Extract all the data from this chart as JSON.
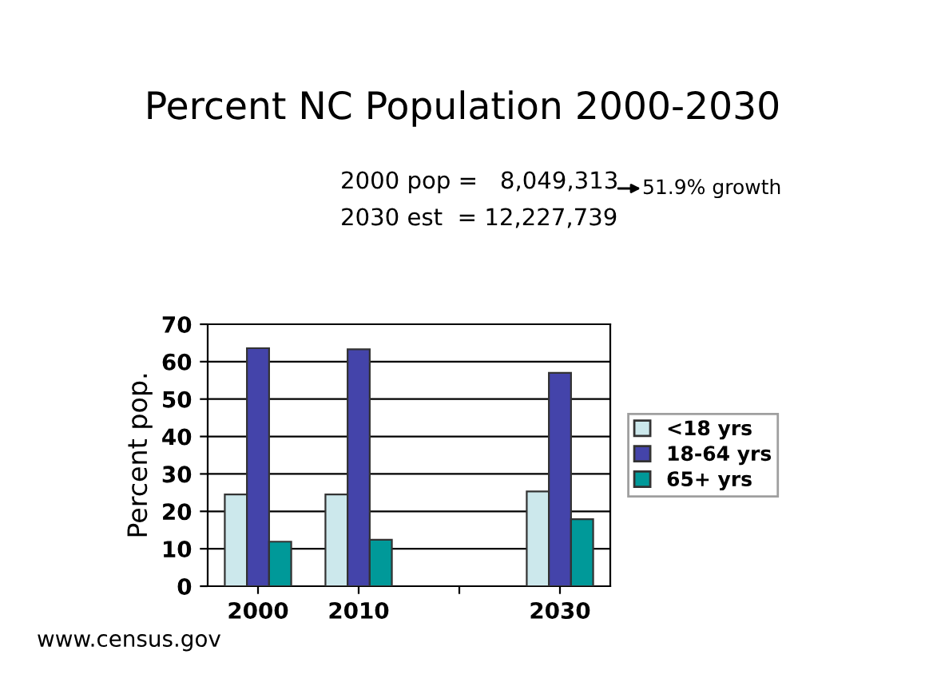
{
  "chart_data": {
    "type": "bar",
    "title": "Percent NC Population 2000-2030",
    "ylabel": "Percent pop.",
    "annotations": [
      "2000 pop =   8,049,313",
      "2030 est  = 12,227,739",
      "51.9% growth",
      "www.census.gov"
    ],
    "categories": [
      "2000",
      "2010",
      null,
      "2030"
    ],
    "series": [
      {
        "name": "<18 yrs",
        "color": "#cce8ec",
        "values": [
          24.5,
          24.5,
          null,
          25.3
        ]
      },
      {
        "name": "18-64 yrs",
        "color": "#4444aa",
        "values": [
          63.6,
          63.3,
          null,
          57.0
        ]
      },
      {
        "name": "65+ yrs",
        "color": "#009999",
        "values": [
          11.9,
          12.4,
          null,
          17.9
        ]
      }
    ],
    "ylim": [
      0,
      70
    ],
    "yticks": [
      0,
      10,
      20,
      30,
      40,
      50,
      60,
      70
    ],
    "grid": "y",
    "legend": "right"
  }
}
